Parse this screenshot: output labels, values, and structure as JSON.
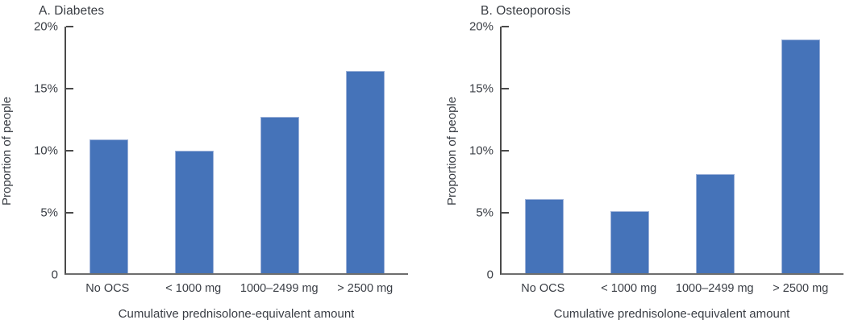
{
  "figure": {
    "background": "#ffffff",
    "text_color": "#3a3e45",
    "axis_spine_color": "#4a4a4a",
    "baseline_color": "#6e6e6e"
  },
  "chart_data": [
    {
      "type": "bar",
      "panel_label": "A. Diabetes",
      "categories": [
        "No OCS",
        "< 1000 mg",
        "1000–2499 mg",
        "> 2500 mg"
      ],
      "values": [
        10.8,
        9.9,
        12.6,
        16.3
      ],
      "unit": "%",
      "title": "A. Diabetes",
      "xlabel": "Cumulative prednisolone-equivalent amount",
      "ylabel": "Proportion of people",
      "ylim": [
        0,
        20
      ],
      "ytick_values": [
        20,
        15,
        10,
        5,
        0
      ],
      "ytick_labels": [
        "20%",
        "15%",
        "10%",
        "5%",
        "0"
      ],
      "grid": false,
      "legend": "none",
      "bar_color": "#4573b9",
      "bar_border_color": "#9db2d9"
    },
    {
      "type": "bar",
      "panel_label": "B. Osteoporosis",
      "categories": [
        "No OCS",
        "< 1000 mg",
        "1000–2499 mg",
        "> 2500 mg"
      ],
      "values": [
        6.0,
        5.0,
        8.0,
        18.8
      ],
      "unit": "%",
      "title": "B. Osteoporosis",
      "xlabel": "Cumulative prednisolone-equivalent amount",
      "ylabel": "Proportion of people",
      "ylim": [
        0,
        20
      ],
      "ytick_values": [
        20,
        15,
        10,
        5,
        0
      ],
      "ytick_labels": [
        "20%",
        "15%",
        "10%",
        "5%",
        "0"
      ],
      "grid": false,
      "legend": "none",
      "bar_color": "#4573b9",
      "bar_border_color": "#9db2d9"
    }
  ]
}
